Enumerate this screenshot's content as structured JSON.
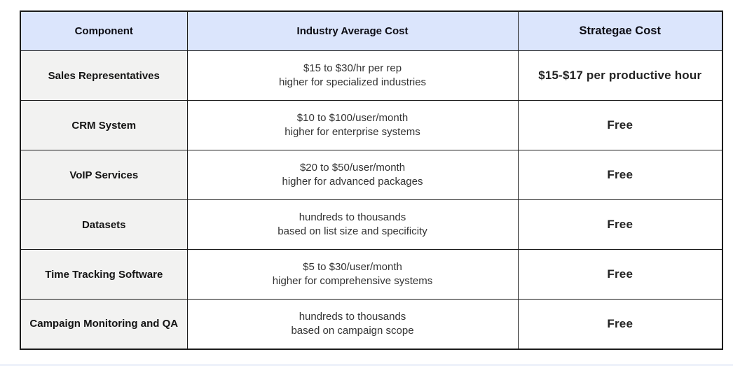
{
  "table": {
    "headers": {
      "component": "Component",
      "industry": "Industry Average Cost",
      "strategae": "Strategae Cost"
    },
    "rows": [
      {
        "component": "Sales Representatives",
        "industry_line1": "$15 to $30/hr per rep",
        "industry_line2": "higher for specialized industries",
        "strategae": "$15-$17 per productive hour"
      },
      {
        "component": "CRM System",
        "industry_line1": "$10 to $100/user/month",
        "industry_line2": "higher for enterprise systems",
        "strategae": "Free"
      },
      {
        "component": "VoIP Services",
        "industry_line1": "$20 to $50/user/month",
        "industry_line2": "higher for advanced packages",
        "strategae": "Free"
      },
      {
        "component": "Datasets",
        "industry_line1": "hundreds to thousands",
        "industry_line2": "based on list size and specificity",
        "strategae": "Free"
      },
      {
        "component": "Time Tracking Software",
        "industry_line1": "$5 to $30/user/month",
        "industry_line2": "higher for comprehensive systems",
        "strategae": "Free"
      },
      {
        "component": "Campaign Monitoring and QA",
        "industry_line1": "hundreds to thousands",
        "industry_line2": "based on campaign scope",
        "strategae": "Free"
      }
    ]
  },
  "colors": {
    "header_bg": "#dbe5fc",
    "header_text": "#0c0c14",
    "row_label_bg": "#f2f2f1",
    "border": "#1b1b1b",
    "body_text": "#333333",
    "page_bg": "#ffffff",
    "footer_line": "#eef2fa"
  }
}
